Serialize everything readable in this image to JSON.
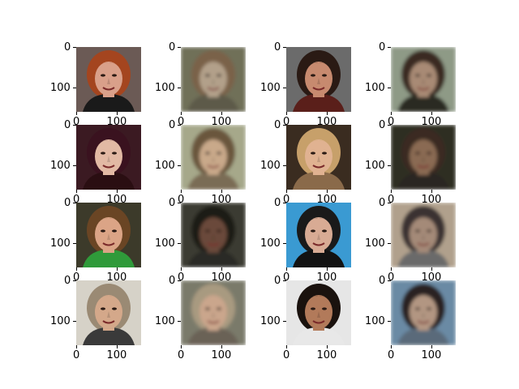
{
  "figure": {
    "rows": 4,
    "cols": 4,
    "axis_ticks": {
      "y_labels": [
        "0",
        "100"
      ],
      "x_labels": [
        "0",
        "100"
      ]
    },
    "panels": [
      {
        "id": "r1c1",
        "kind": "real",
        "bg": "#6b5a55",
        "hair": "#a4451f",
        "skin": "#d9a08a",
        "shirt": "#1a1a1a"
      },
      {
        "id": "r1c2",
        "kind": "reconstruction",
        "bg": "#6f6f58",
        "hair": "#7a6248",
        "skin": "#b2a08a",
        "shirt": "#5d5a48"
      },
      {
        "id": "r1c3",
        "kind": "real",
        "bg": "#6b6b6b",
        "hair": "#2a1a14",
        "skin": "#c78a6f",
        "shirt": "#5a1f1a"
      },
      {
        "id": "r1c4",
        "kind": "reconstruction",
        "bg": "#8e9a86",
        "hair": "#3a2c22",
        "skin": "#a88a74",
        "shirt": "#2a2a24"
      },
      {
        "id": "r2c1",
        "kind": "real",
        "bg": "#3b1a22",
        "hair": "#3a121f",
        "skin": "#e2b9a4",
        "shirt": "#2a0e12"
      },
      {
        "id": "r2c2",
        "kind": "reconstruction",
        "bg": "#a6a88a",
        "hair": "#6a563e",
        "skin": "#c9a98a",
        "shirt": "#7a6c55"
      },
      {
        "id": "r2c3",
        "kind": "real",
        "bg": "#3a2c20",
        "hair": "#c7a06a",
        "skin": "#e0b291",
        "shirt": "#8a6a4a"
      },
      {
        "id": "r2c4",
        "kind": "reconstruction",
        "bg": "#2f2f22",
        "hair": "#3a2c20",
        "skin": "#8a6a52",
        "shirt": "#2a2620"
      },
      {
        "id": "r3c1",
        "kind": "real",
        "bg": "#3c3a2a",
        "hair": "#6a4524",
        "skin": "#dba486",
        "shirt": "#2f9a3a"
      },
      {
        "id": "r3c2",
        "kind": "reconstruction",
        "bg": "#3a3a32",
        "hair": "#1e1a16",
        "skin": "#6a4a3a",
        "shirt": "#2a2a26"
      },
      {
        "id": "r3c3",
        "kind": "real",
        "bg": "#3a9ad2",
        "hair": "#1a1a1a",
        "skin": "#d8ab94",
        "shirt": "#121212"
      },
      {
        "id": "r3c4",
        "kind": "reconstruction",
        "bg": "#b0a08c",
        "hair": "#3a3030",
        "skin": "#a48a78",
        "shirt": "#6a6a6a"
      },
      {
        "id": "r4c1",
        "kind": "real",
        "bg": "#d6d2c8",
        "hair": "#9a8a74",
        "skin": "#d4a88a",
        "shirt": "#3a3a3a"
      },
      {
        "id": "r4c2",
        "kind": "reconstruction",
        "bg": "#7a7a6a",
        "hair": "#a89a80",
        "skin": "#caa68c",
        "shirt": "#6a6256"
      },
      {
        "id": "r4c3",
        "kind": "real",
        "bg": "#e6e6e6",
        "hair": "#1a120e",
        "skin": "#b27a5a",
        "shirt": "#e8e8e8"
      },
      {
        "id": "r4c4",
        "kind": "reconstruction",
        "bg": "#6a8aa4",
        "hair": "#2a2220",
        "skin": "#b29682",
        "shirt": "#5a6a7a"
      }
    ]
  }
}
